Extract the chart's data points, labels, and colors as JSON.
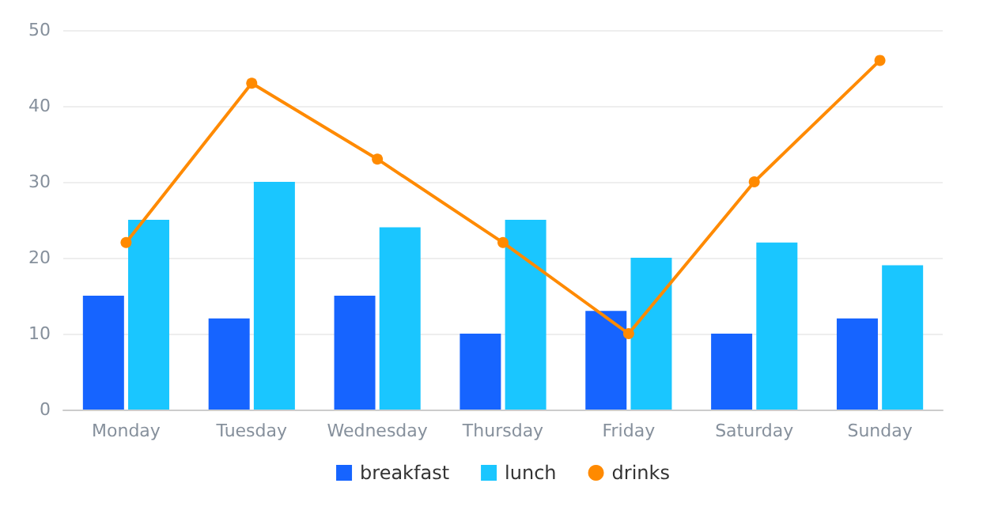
{
  "chart_data": {
    "type": "bar",
    "categories": [
      "Monday",
      "Tuesday",
      "Wednesday",
      "Thursday",
      "Friday",
      "Saturday",
      "Sunday"
    ],
    "series": [
      {
        "name": "breakfast",
        "color": "#1664ff",
        "values": [
          15,
          12,
          15,
          10,
          13,
          10,
          12
        ]
      },
      {
        "name": "lunch",
        "color": "#1ac6ff",
        "values": [
          25,
          30,
          24,
          25,
          20,
          22,
          19
        ]
      },
      {
        "name": "drinks",
        "type": "line",
        "marker": "circle",
        "color": "#ff8a00",
        "values": [
          22,
          43,
          33,
          22,
          10,
          30,
          46
        ]
      }
    ],
    "ylim": [
      0,
      50
    ],
    "yticks": [
      0,
      10,
      20,
      30,
      40,
      50
    ],
    "grid": "y",
    "legend": "bottom"
  }
}
